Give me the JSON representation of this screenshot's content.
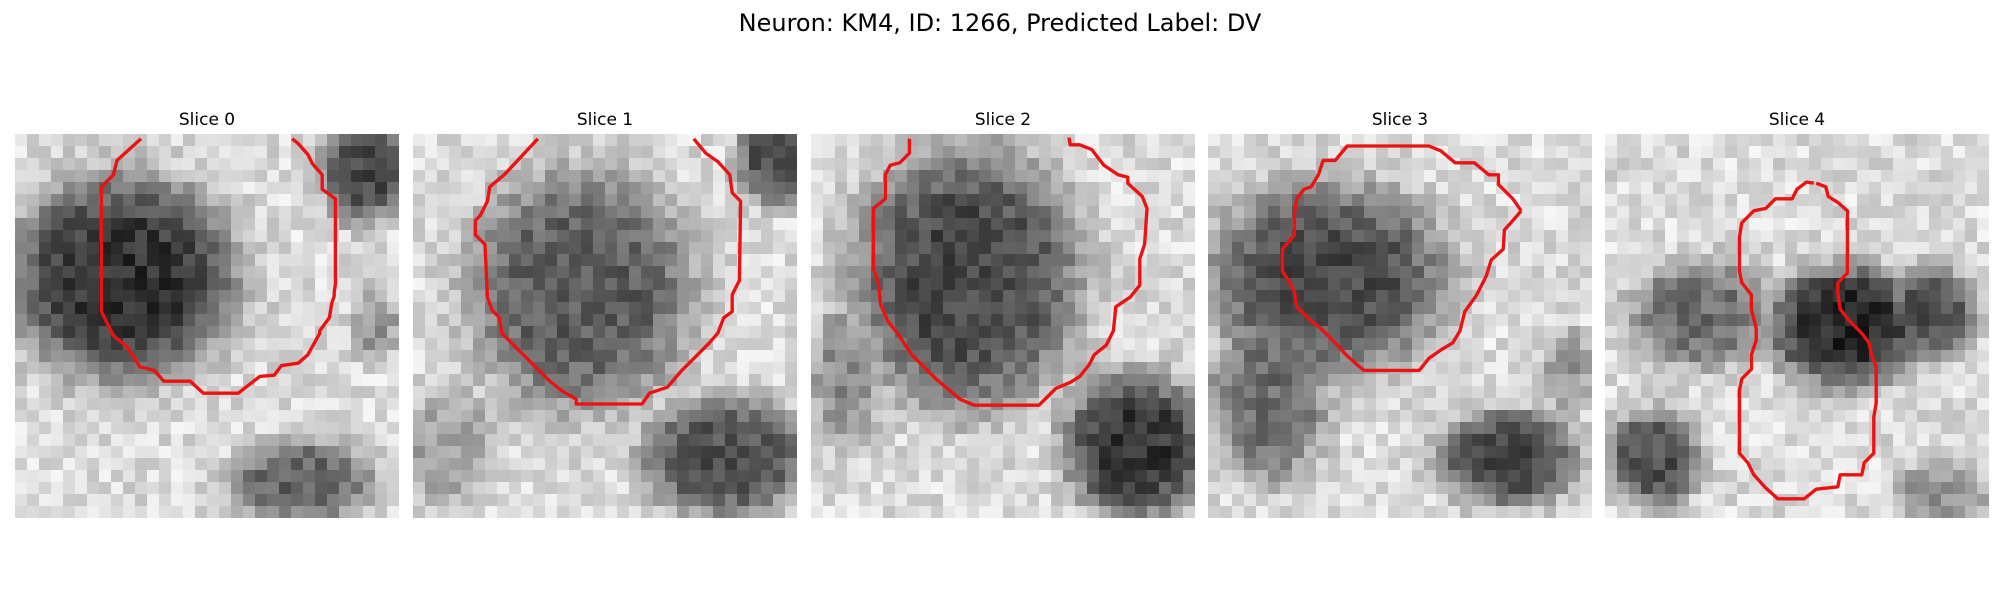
{
  "figure": {
    "title": "Neuron: KM4, ID: 1266, Predicted Label: DV"
  },
  "panels": [
    {
      "title": "Slice 0"
    },
    {
      "title": "Slice 1"
    },
    {
      "title": "Slice 2"
    },
    {
      "title": "Slice 3"
    },
    {
      "title": "Slice 4"
    }
  ],
  "colors": {
    "contour": "#ee1111",
    "background": "#ffffff"
  }
}
